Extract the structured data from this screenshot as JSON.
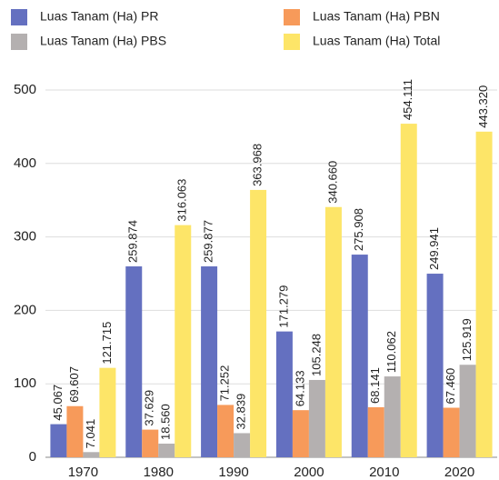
{
  "chart_data": {
    "type": "bar",
    "categories": [
      "1970",
      "1980",
      "1990",
      "2000",
      "2010",
      "2020"
    ],
    "series": [
      {
        "name": "Luas Tanam (Ha) PR",
        "color": "#6470c0",
        "values": [
          45.067,
          259.874,
          259.877,
          171.279,
          275.908,
          249.941
        ],
        "value_labels": [
          "45.067",
          "259.874",
          "259.877",
          "171.279",
          "275.908",
          "249.941"
        ]
      },
      {
        "name": "Luas Tanam (Ha) PBN",
        "color": "#f79a5a",
        "values": [
          69.607,
          37.629,
          71.252,
          64.133,
          68.141,
          67.46
        ],
        "value_labels": [
          "69.607",
          "37.629",
          "71.252",
          "64.133",
          "68.141",
          "67.460"
        ]
      },
      {
        "name": "Luas Tanam (Ha) PBS",
        "color": "#b4b0b0",
        "values": [
          7.041,
          18.56,
          32.839,
          105.248,
          110.062,
          125.919
        ],
        "value_labels": [
          "7.041",
          "18.560",
          "32.839",
          "105.248",
          "110.062",
          "125.919"
        ]
      },
      {
        "name": "Luas Tanam (Ha) Total",
        "color": "#fde568",
        "values": [
          121.715,
          316.063,
          363.968,
          340.66,
          454.111,
          443.32
        ],
        "value_labels": [
          "121.715",
          "316.063",
          "363.968",
          "340.660",
          "454.111",
          "443.320"
        ]
      }
    ],
    "ylim": [
      0,
      500
    ],
    "yticks": [
      0,
      100,
      200,
      300,
      400,
      500
    ],
    "grid": true
  }
}
